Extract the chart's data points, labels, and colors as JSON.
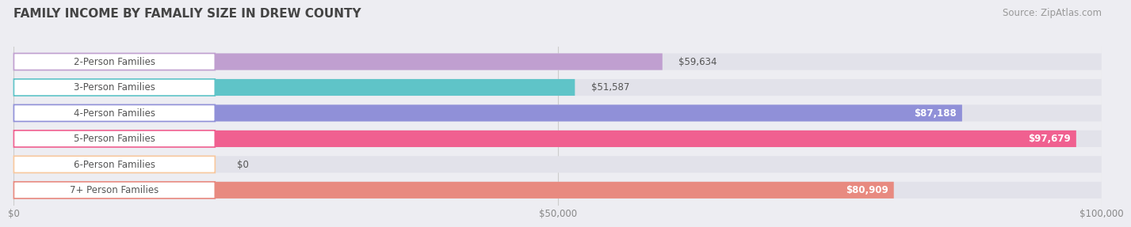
{
  "title": "FAMILY INCOME BY FAMALIY SIZE IN DREW COUNTY",
  "source": "Source: ZipAtlas.com",
  "categories": [
    "2-Person Families",
    "3-Person Families",
    "4-Person Families",
    "5-Person Families",
    "6-Person Families",
    "7+ Person Families"
  ],
  "values": [
    59634,
    51587,
    87188,
    97679,
    0,
    80909
  ],
  "bar_colors": [
    "#c09fd0",
    "#5fc4c8",
    "#9090d8",
    "#f06090",
    "#f8c89e",
    "#e88a80"
  ],
  "value_labels": [
    "$59,634",
    "$51,587",
    "$87,188",
    "$97,679",
    "$0",
    "$80,909"
  ],
  "value_inside": [
    false,
    false,
    true,
    true,
    false,
    true
  ],
  "xlim": [
    0,
    100000
  ],
  "xticks": [
    0,
    50000,
    100000
  ],
  "xtick_labels": [
    "$0",
    "$50,000",
    "$100,000"
  ],
  "background_color": "#ededf2",
  "bar_bg_color": "#e2e2ea",
  "title_fontsize": 11,
  "source_fontsize": 8.5,
  "label_fontsize": 8.5,
  "value_fontsize": 8.5
}
